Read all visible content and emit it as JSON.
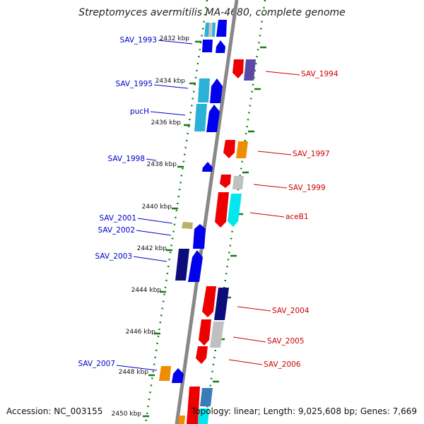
{
  "title": "Streptomyces avermitilis MA-4680, complete genome",
  "footer": {
    "accession": "Accession: NC_003155",
    "summary": "Topology: linear; Length: 9,025,608 bp; Genes: 7,669"
  },
  "colors": {
    "axis": "#888888",
    "tick": "#1a7a1a",
    "left_label": "#0000cc",
    "right_label": "#cc0000"
  },
  "ticks": [
    "2432 kbp",
    "2434 kbp",
    "2436 kbp",
    "2438 kbp",
    "2440 kbp",
    "2442 kbp",
    "2444 kbp",
    "2446 kbp",
    "2448 kbp",
    "2450 kbp"
  ],
  "genes_left": [
    "SAV_1993",
    "SAV_1995",
    "pucH",
    "SAV_1998",
    "SAV_2001",
    "SAV_2002",
    "SAV_2003",
    "SAV_2007"
  ],
  "genes_right": [
    "SAV_1994",
    "SAV_1997",
    "SAV_1999",
    "aceB1",
    "SAV_2004",
    "SAV_2005",
    "SAV_2006"
  ]
}
